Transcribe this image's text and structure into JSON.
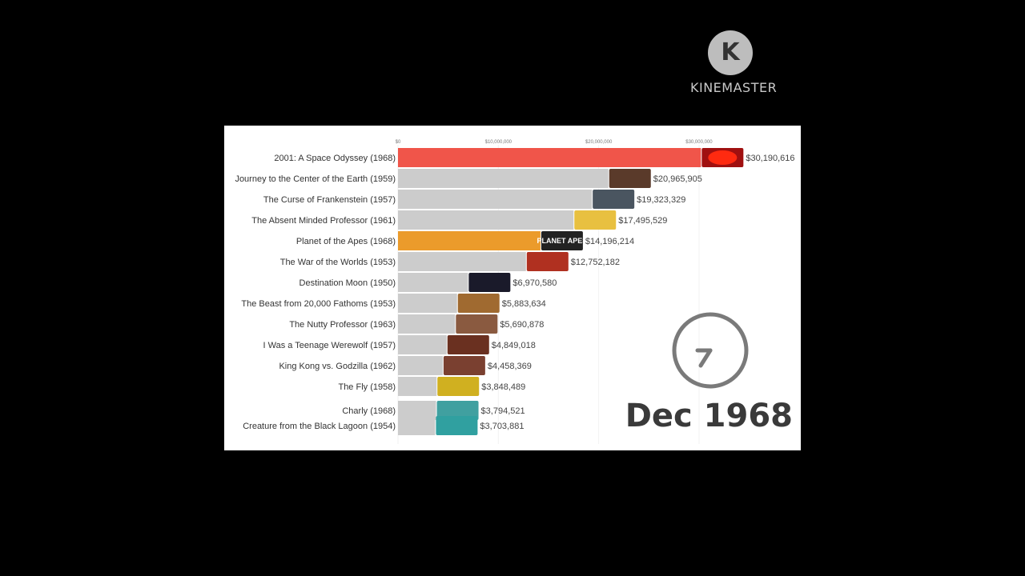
{
  "watermark": {
    "logo_letter": "K",
    "text": "KINEMASTER"
  },
  "date_label": "Dec 1968",
  "colors": {
    "highlight_red": "#f0554a",
    "highlight_orange": "#eb9b2b",
    "default_bar": "#cccccc",
    "clock": "#7a7a7a"
  },
  "chart_data": {
    "type": "bar",
    "orientation": "horizontal",
    "title": "",
    "xlabel": "",
    "ylabel": "",
    "xlim": [
      0,
      31600000
    ],
    "ticks": [
      {
        "value": 0,
        "label": "$0"
      },
      {
        "value": 10000000,
        "label": "$10,000,000"
      },
      {
        "value": 20000000,
        "label": "$20,000,000"
      },
      {
        "value": 30000000,
        "label": "$30,000,000"
      }
    ],
    "grid": true,
    "categories": [
      "2001: A Space Odyssey (1968)",
      "Journey to the Center of the Earth (1959)",
      "The Curse of Frankenstein (1957)",
      "The Absent Minded Professor (1961)",
      "Planet of the Apes (1968)",
      "The War of the Worlds (1953)",
      "Destination Moon (1950)",
      "The Beast from 20,000 Fathoms (1953)",
      "The Nutty Professor (1963)",
      "I Was a Teenage Werewolf (1957)",
      "King Kong vs. Godzilla (1962)",
      "The Fly (1958)",
      "Charly (1968)",
      "Creature from the Black Lagoon (1954)"
    ],
    "values": [
      30190616,
      20965905,
      19323329,
      17495529,
      14196214,
      12752182,
      6970580,
      5883634,
      5690878,
      4849018,
      4458369,
      3848489,
      3794521,
      3703881
    ],
    "value_labels": [
      "$30,190,616",
      "$20,965,905",
      "$19,323,329",
      "$17,495,529",
      "$14,196,214",
      "$12,752,182",
      "$6,970,580",
      "$5,883,634",
      "$5,690,878",
      "$4,849,018",
      "$4,458,369",
      "$3,848,489",
      "$3,794,521",
      "$3,703,881"
    ],
    "bar_colors": [
      "#f0554a",
      "#cccccc",
      "#cccccc",
      "#cccccc",
      "#eb9b2b",
      "#cccccc",
      "#cccccc",
      "#cccccc",
      "#cccccc",
      "#cccccc",
      "#cccccc",
      "#cccccc",
      "#cccccc",
      "#cccccc"
    ],
    "thumbnail_colors": [
      "#a01010",
      "#5a3a2a",
      "#4a5560",
      "#e8c040",
      "#222222",
      "#b03020",
      "#1a1a2a",
      "#a06a30",
      "#8a5a40",
      "#6a3020",
      "#7a4030",
      "#d0b020",
      "#40a0a0",
      "#30a0a0"
    ],
    "thumbnail_text": {
      "4": "PLANET APES"
    }
  }
}
